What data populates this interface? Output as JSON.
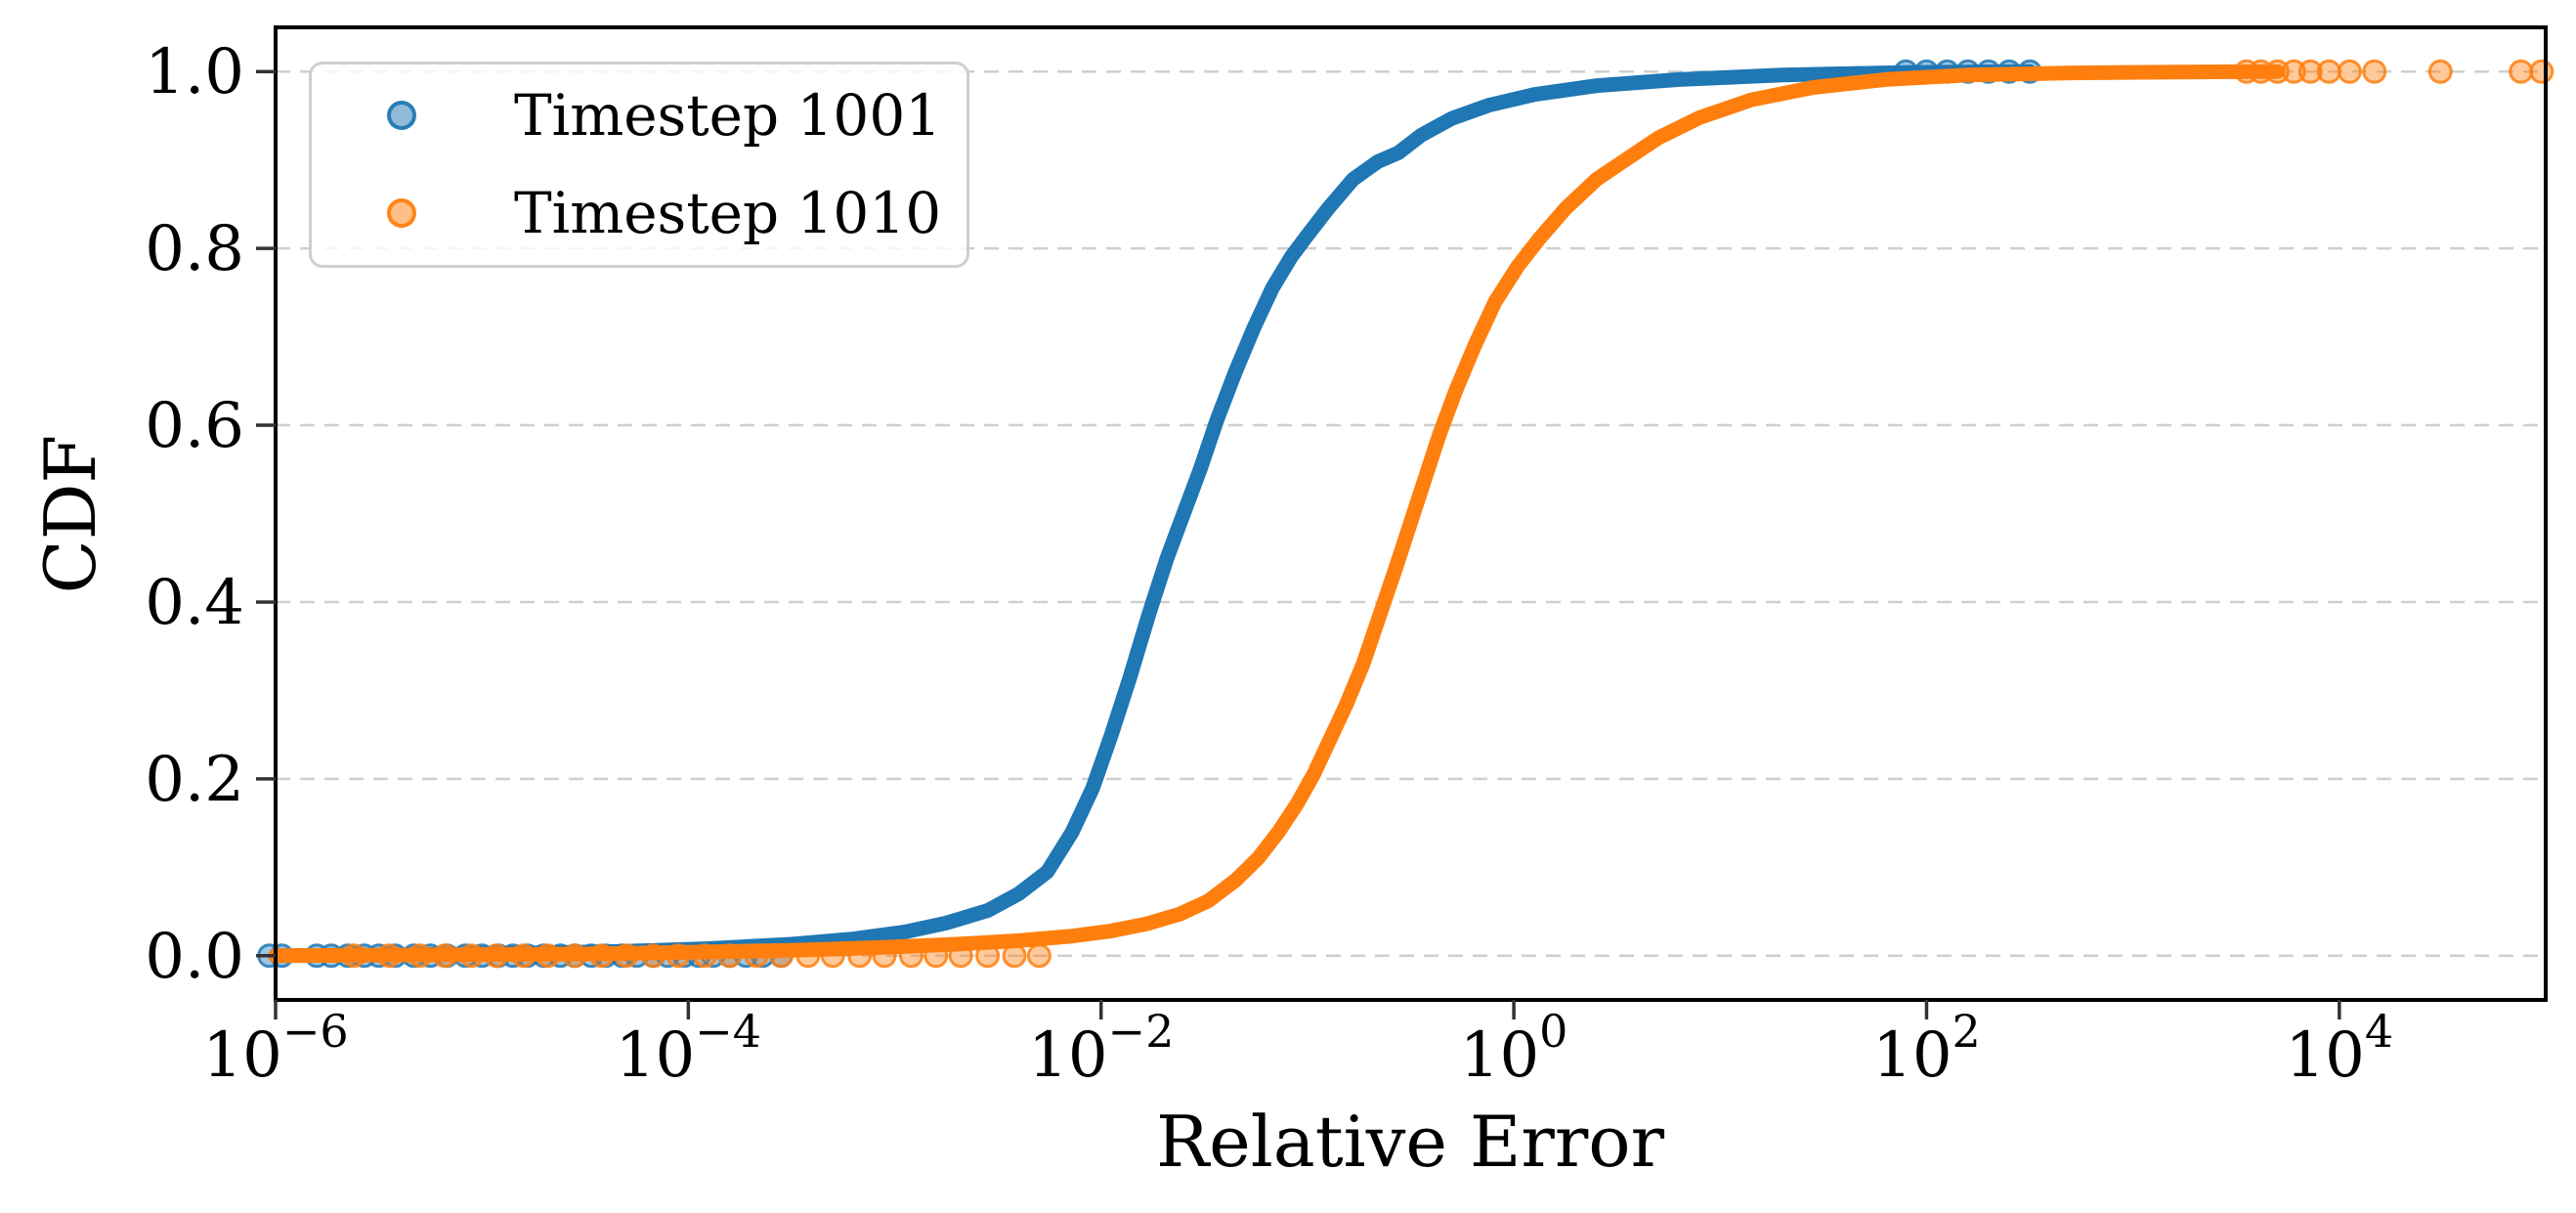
{
  "chart_data": {
    "type": "scatter",
    "title": "",
    "xlabel": "Relative Error",
    "ylabel": "CDF",
    "x_scale": "log10",
    "xlim_log10": [
      -6,
      5
    ],
    "x_tick_exponents": [
      -6,
      -4,
      -2,
      0,
      2,
      4
    ],
    "ylim": [
      -0.05,
      1.05
    ],
    "yticks": [
      0.0,
      0.2,
      0.4,
      0.6,
      0.8,
      1.0
    ],
    "ytick_labels": [
      "0.0",
      "0.2",
      "0.4",
      "0.6",
      "0.8",
      "1.0"
    ],
    "grid": {
      "horizontal": true,
      "vertical": false,
      "style": "dashed",
      "color": "#cfcfcf"
    },
    "legend": {
      "position": "upper-left",
      "entries": [
        {
          "label": "Timestep 1001",
          "color": "#1f77b4",
          "marker": "circle"
        },
        {
          "label": "Timestep 1010",
          "color": "#ff7f0e",
          "marker": "circle"
        }
      ]
    },
    "series": [
      {
        "name": "Timestep 1001",
        "color": "#1f77b4",
        "curve_log10x_cdf": [
          [
            -6.0,
            0.0
          ],
          [
            -5.4,
            0.001
          ],
          [
            -4.8,
            0.003
          ],
          [
            -4.3,
            0.005
          ],
          [
            -3.9,
            0.008
          ],
          [
            -3.5,
            0.013
          ],
          [
            -3.2,
            0.019
          ],
          [
            -2.95,
            0.027
          ],
          [
            -2.75,
            0.037
          ],
          [
            -2.55,
            0.051
          ],
          [
            -2.4,
            0.07
          ],
          [
            -2.26,
            0.095
          ],
          [
            -2.14,
            0.14
          ],
          [
            -2.04,
            0.19
          ],
          [
            -1.95,
            0.25
          ],
          [
            -1.86,
            0.315
          ],
          [
            -1.77,
            0.385
          ],
          [
            -1.68,
            0.45
          ],
          [
            -1.6,
            0.5
          ],
          [
            -1.52,
            0.55
          ],
          [
            -1.44,
            0.605
          ],
          [
            -1.35,
            0.66
          ],
          [
            -1.26,
            0.71
          ],
          [
            -1.17,
            0.755
          ],
          [
            -1.08,
            0.79
          ],
          [
            -1.0,
            0.815
          ],
          [
            -0.9,
            0.845
          ],
          [
            -0.78,
            0.878
          ],
          [
            -0.66,
            0.898
          ],
          [
            -0.56,
            0.908
          ],
          [
            -0.45,
            0.928
          ],
          [
            -0.3,
            0.947
          ],
          [
            -0.12,
            0.962
          ],
          [
            0.1,
            0.974
          ],
          [
            0.4,
            0.984
          ],
          [
            0.8,
            0.991
          ],
          [
            1.3,
            0.996
          ],
          [
            1.9,
            0.999
          ],
          [
            2.5,
            1.0
          ]
        ],
        "bottom_outliers_log10x": [
          -6.03,
          -5.97,
          -5.8,
          -5.73,
          -5.65,
          -5.57,
          -5.5,
          -5.42,
          -5.33,
          -5.25,
          -5.17,
          -5.08,
          -5.0,
          -4.92,
          -4.85,
          -4.78,
          -4.7,
          -4.62,
          -4.55,
          -4.47,
          -4.4,
          -4.32,
          -4.25,
          -4.17,
          -4.1,
          -4.02,
          -3.95,
          -3.88,
          -3.8,
          -3.72,
          -3.64,
          -3.55
        ],
        "top_outliers_log10x": [
          1.9,
          2.0,
          2.1,
          2.2,
          2.3,
          2.4,
          2.5
        ]
      },
      {
        "name": "Timestep 1010",
        "color": "#ff7f0e",
        "curve_log10x_cdf": [
          [
            -6.0,
            0.0
          ],
          [
            -5.2,
            0.001
          ],
          [
            -4.5,
            0.002
          ],
          [
            -4.0,
            0.004
          ],
          [
            -3.5,
            0.006
          ],
          [
            -3.1,
            0.009
          ],
          [
            -2.7,
            0.013
          ],
          [
            -2.4,
            0.017
          ],
          [
            -2.15,
            0.022
          ],
          [
            -1.95,
            0.028
          ],
          [
            -1.78,
            0.036
          ],
          [
            -1.62,
            0.047
          ],
          [
            -1.48,
            0.062
          ],
          [
            -1.35,
            0.085
          ],
          [
            -1.24,
            0.11
          ],
          [
            -1.14,
            0.14
          ],
          [
            -1.05,
            0.172
          ],
          [
            -0.97,
            0.205
          ],
          [
            -0.89,
            0.245
          ],
          [
            -0.81,
            0.285
          ],
          [
            -0.73,
            0.33
          ],
          [
            -0.65,
            0.385
          ],
          [
            -0.57,
            0.44
          ],
          [
            -0.5,
            0.49
          ],
          [
            -0.43,
            0.54
          ],
          [
            -0.36,
            0.59
          ],
          [
            -0.28,
            0.64
          ],
          [
            -0.19,
            0.69
          ],
          [
            -0.09,
            0.74
          ],
          [
            0.02,
            0.78
          ],
          [
            0.12,
            0.81
          ],
          [
            0.25,
            0.845
          ],
          [
            0.4,
            0.878
          ],
          [
            0.54,
            0.9
          ],
          [
            0.7,
            0.925
          ],
          [
            0.9,
            0.948
          ],
          [
            1.15,
            0.968
          ],
          [
            1.45,
            0.982
          ],
          [
            1.8,
            0.991
          ],
          [
            2.2,
            0.996
          ],
          [
            2.7,
            0.9985
          ],
          [
            3.2,
            0.9995
          ],
          [
            3.7,
            1.0
          ]
        ],
        "bottom_outliers_log10x": [
          -5.62,
          -5.45,
          -5.3,
          -5.18,
          -5.05,
          -4.93,
          -4.8,
          -4.68,
          -4.55,
          -4.42,
          -4.3,
          -4.17,
          -4.05,
          -3.92,
          -3.8,
          -3.67,
          -3.55,
          -3.42,
          -3.3,
          -3.17,
          -3.05,
          -2.92,
          -2.8,
          -2.68,
          -2.55,
          -2.42,
          -2.3
        ],
        "top_outliers_log10x": [
          3.55,
          3.62,
          3.7,
          3.78,
          3.86,
          3.95,
          4.05,
          4.17,
          4.49,
          4.88,
          4.98
        ]
      }
    ]
  }
}
